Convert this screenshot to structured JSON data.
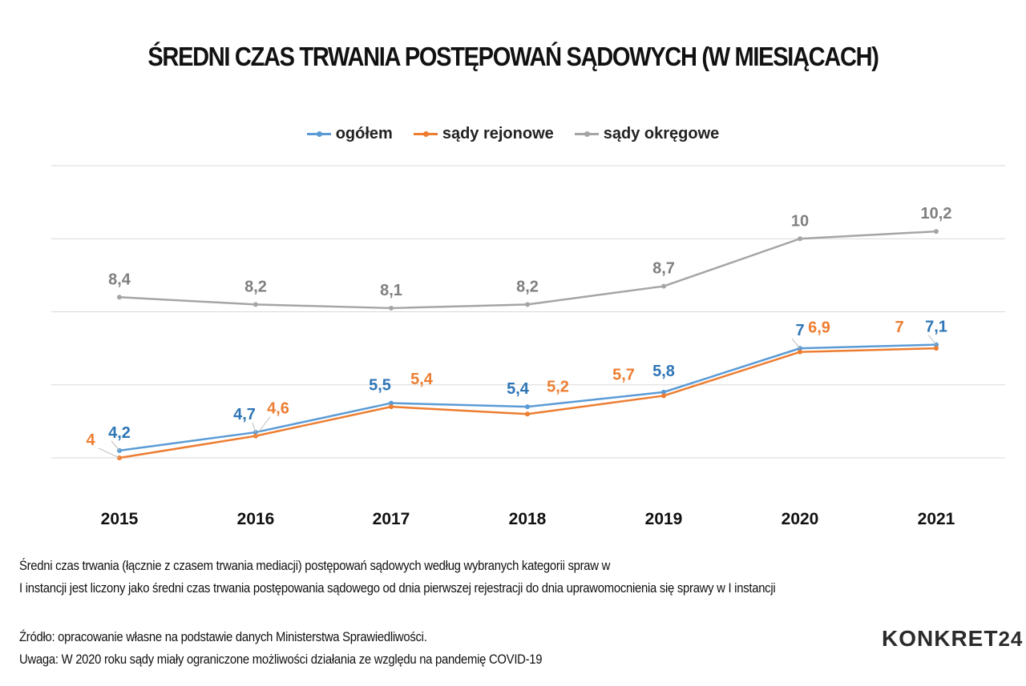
{
  "chart_data": {
    "type": "line",
    "title": "ŚREDNI CZAS TRWANIA POSTĘPOWAŃ SĄDOWYCH (W MIESIĄCACH)",
    "categories": [
      "2015",
      "2016",
      "2017",
      "2018",
      "2019",
      "2020",
      "2021"
    ],
    "series": [
      {
        "name": "ogółem",
        "color": "#5b9bd5",
        "values": [
          4.2,
          4.7,
          5.5,
          5.4,
          5.8,
          7,
          7.1
        ],
        "labels": [
          "4,2",
          "4,7",
          "5,5",
          "5,4",
          "5,8",
          "7",
          "7,1"
        ]
      },
      {
        "name": "sądy rejonowe",
        "color": "#ed7d31",
        "values": [
          4,
          4.6,
          5.4,
          5.2,
          5.7,
          6.9,
          7
        ],
        "labels": [
          "4",
          "4,6",
          "5,4",
          "5,2",
          "5,7",
          "6,9",
          "7"
        ]
      },
      {
        "name": "sądy okręgowe",
        "color": "#a5a5a5",
        "values": [
          8.4,
          8.2,
          8.1,
          8.2,
          8.7,
          10,
          10.2
        ],
        "labels": [
          "8,4",
          "8,2",
          "8,1",
          "8,2",
          "8,7",
          "10",
          "10,2"
        ]
      }
    ],
    "ylim": [
      4,
      12
    ],
    "grid": true,
    "legend": "top-center",
    "label_colors": {
      "ogółem": "#2e75b6",
      "sądy rejonowe": "#ed7d31",
      "sądy okręgowe": "#7f7f7f"
    }
  },
  "notes": {
    "line1": "Średni czas trwania (łącznie z czasem trwania mediacji) postępowań sądowych według wybranych kategorii spraw w",
    "line2": "I instancji jest liczony jako średni czas trwania postępowania sądowego od dnia pierwszej rejestracji do dnia uprawomocnienia się sprawy w I instancji",
    "source": "Źródło: opracowanie własne na podstawie danych Ministerstwa Sprawiedliwości.",
    "remark": "Uwaga: W 2020 roku sądy miały ograniczone możliwości działania ze względu na pandemię COVID-19"
  },
  "logo": {
    "text": "KONKRET",
    "number": "24"
  }
}
